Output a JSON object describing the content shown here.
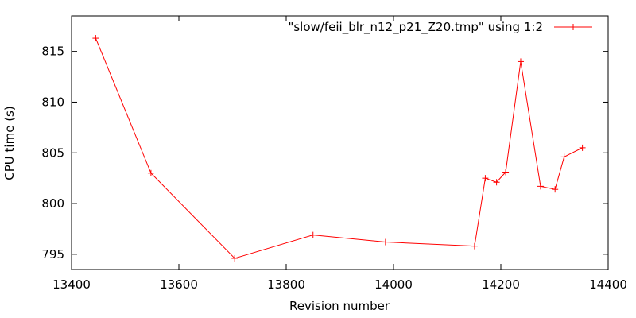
{
  "chart_data": {
    "type": "line",
    "xlabel": "Revision number",
    "ylabel": "CPU time (s)",
    "xlim": [
      13400,
      14400
    ],
    "ylim": [
      793.5,
      818.5
    ],
    "xticks": [
      13400,
      13600,
      13800,
      14000,
      14200,
      14400
    ],
    "yticks": [
      795,
      800,
      805,
      810,
      815
    ],
    "grid": false,
    "legend_position": "top-right",
    "colors": {
      "series": "#ff0000",
      "axes": "#000000"
    },
    "series": [
      {
        "name": "\"slow/feii_blr_n12_p21_Z20.tmp\" using 1:2",
        "marker": "plus",
        "x": [
          13445,
          13548,
          13704,
          13850,
          13985,
          14151,
          14171,
          14192,
          14209,
          14237,
          14274,
          14301,
          14318,
          14352
        ],
        "y": [
          816.3,
          803.0,
          794.6,
          796.9,
          796.2,
          795.8,
          802.5,
          802.1,
          803.1,
          814.0,
          801.7,
          801.4,
          804.6,
          805.5
        ]
      }
    ]
  }
}
